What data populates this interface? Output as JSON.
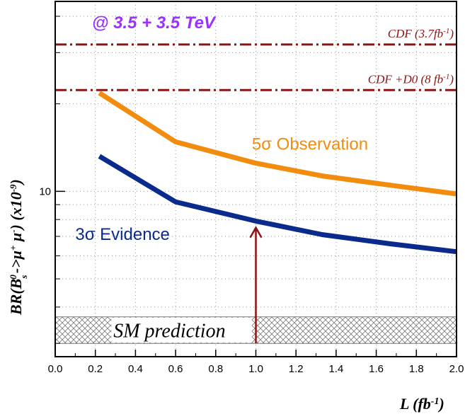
{
  "chart_data": {
    "type": "line",
    "title": "@ 3.5 + 3.5 TeV",
    "xlabel": "L (fb-1)",
    "xlabel_parts": {
      "main": "L (fb",
      "sup": "-1",
      "close": ")"
    },
    "ylabel": "BR(Bs0->μ+μ-) (x10-9)",
    "ylabel_parts": {
      "pre": "BR(B",
      "sub": "s",
      "sup0": "0",
      "arrow": "->μ",
      "supplus": "+",
      "mu2": " μ",
      "supminus": "-",
      "close": ")  (x10",
      "supexp": "-9",
      "end": ")"
    },
    "xlim": [
      0.0,
      2.0
    ],
    "ylim": [
      2.7,
      45
    ],
    "yscale": "log",
    "x_ticks": [
      "0.0",
      "0.2",
      "0.4",
      "0.6",
      "0.8",
      "1.0",
      "1.2",
      "1.4",
      "1.6",
      "1.8",
      "2.0"
    ],
    "y_tick_labels": [
      {
        "value": 10,
        "label": "10"
      }
    ],
    "series": [
      {
        "name": "5σ Observation",
        "color": "#f28c0f",
        "x": [
          0.22,
          0.6,
          1.0,
          1.33,
          1.67,
          2.0
        ],
        "values": [
          21.8,
          14.8,
          12.5,
          11.3,
          10.5,
          9.8
        ]
      },
      {
        "name": "3σ Evidence",
        "color": "#0a2a8c",
        "x": [
          0.22,
          0.6,
          1.0,
          1.33,
          1.67,
          2.0
        ],
        "values": [
          13.2,
          9.2,
          7.9,
          7.1,
          6.6,
          6.2
        ]
      }
    ],
    "reference_lines": [
      {
        "label": "CDF (3.7fb-1)",
        "label_main": "CDF  (3.7fb",
        "label_sup": "-1",
        "label_close": ")",
        "value": 32.0,
        "color": "#8b1414"
      },
      {
        "label": "CDF+D0 (8 fb-1)",
        "label_main": "CDF +D0 (8 fb",
        "label_sup": "-1",
        "label_close": ")",
        "value": 22.3,
        "color": "#8b1414"
      }
    ],
    "band": {
      "label": "SM prediction",
      "low": 3.0,
      "high": 3.7
    },
    "arrow": {
      "x": 1.0,
      "from": 3.0,
      "to": 7.5,
      "color": "#8b1414"
    },
    "energy_color": "#9b30ff"
  }
}
